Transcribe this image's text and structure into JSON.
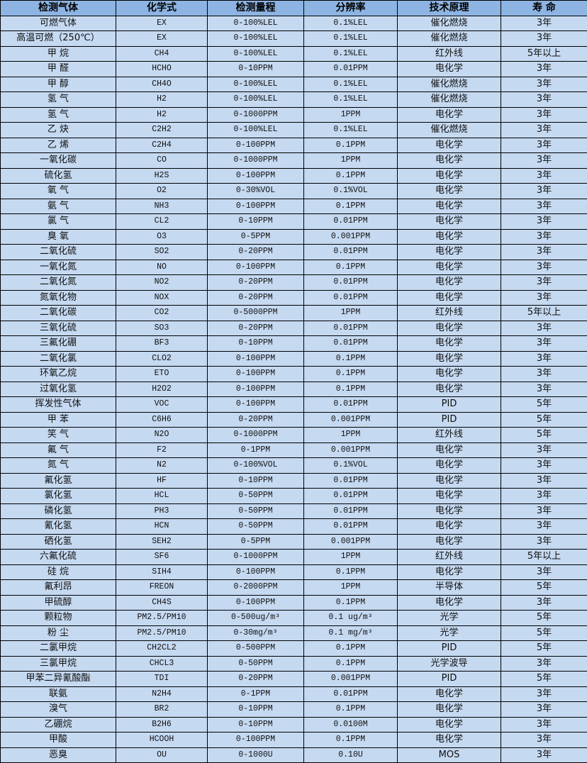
{
  "headers": [
    "检测气体",
    "化学式",
    "检测量程",
    "分辨率",
    "技术原理",
    "寿 命"
  ],
  "rows": [
    [
      "可燃气体",
      "EX",
      "0-100%LEL",
      "0.1%LEL",
      "催化燃烧",
      "3年"
    ],
    [
      "高温可燃（250℃）",
      "EX",
      "0-100%LEL",
      "0.1%LEL",
      "催化燃烧",
      "3年"
    ],
    [
      "甲 烷",
      "CH4",
      "0-100%LEL",
      "0.1%LEL",
      "红外线",
      "5年以上"
    ],
    [
      "甲 醛",
      "HCHO",
      "0-10PPM",
      "0.01PPM",
      "电化学",
      "3年"
    ],
    [
      "甲 醇",
      "CH4O",
      "0-100%LEL",
      "0.1%LEL",
      "催化燃烧",
      "3年"
    ],
    [
      "氢 气",
      "H2",
      "0-100%LEL",
      "0.1%LEL",
      "催化燃烧",
      "3年"
    ],
    [
      "氢 气",
      "H2",
      "0-1000PPM",
      "1PPM",
      "电化学",
      "3年"
    ],
    [
      "乙 炔",
      "C2H2",
      "0-100%LEL",
      "0.1%LEL",
      "催化燃烧",
      "3年"
    ],
    [
      "乙 烯",
      "C2H4",
      "0-100PPM",
      "0.1PPM",
      "电化学",
      "3年"
    ],
    [
      "一氧化碳",
      "CO",
      "0-1000PPM",
      "1PPM",
      "电化学",
      "3年"
    ],
    [
      "硫化氢",
      "H2S",
      "0-100PPM",
      "0.1PPM",
      "电化学",
      "3年"
    ],
    [
      "氧 气",
      "O2",
      "0-30%VOL",
      "0.1%VOL",
      "电化学",
      "3年"
    ],
    [
      "氨 气",
      "NH3",
      "0-100PPM",
      "0.1PPM",
      "电化学",
      "3年"
    ],
    [
      "氯 气",
      "CL2",
      "0-10PPM",
      "0.01PPM",
      "电化学",
      "3年"
    ],
    [
      "臭 氧",
      "O3",
      "0-5PPM",
      "0.001PPM",
      "电化学",
      "3年"
    ],
    [
      "二氧化硫",
      "SO2",
      "0-20PPM",
      "0.01PPM",
      "电化学",
      "3年"
    ],
    [
      "一氧化氮",
      "NO",
      "0-100PPM",
      "0.1PPM",
      "电化学",
      "3年"
    ],
    [
      "二氧化氮",
      "NO2",
      "0-20PPM",
      "0.01PPM",
      "电化学",
      "3年"
    ],
    [
      "氮氧化物",
      "NOX",
      "0-20PPM",
      "0.01PPM",
      "电化学",
      "3年"
    ],
    [
      "二氧化碳",
      "CO2",
      "0-5000PPM",
      "1PPM",
      "红外线",
      "5年以上"
    ],
    [
      "三氧化硫",
      "SO3",
      "0-20PPM",
      "0.01PPM",
      "电化学",
      "3年"
    ],
    [
      "三氟化硼",
      "BF3",
      "0-10PPM",
      "0.01PPM",
      "电化学",
      "3年"
    ],
    [
      "二氧化氯",
      "CLO2",
      "0-100PPM",
      "0.1PPM",
      "电化学",
      "3年"
    ],
    [
      "环氧乙烷",
      "ETO",
      "0-100PPM",
      "0.1PPM",
      "电化学",
      "3年"
    ],
    [
      "过氧化氢",
      "H2O2",
      "0-100PPM",
      "0.1PPM",
      "电化学",
      "3年"
    ],
    [
      "挥发性气体",
      "VOC",
      "0-100PPM",
      "0.01PPM",
      "PID",
      "5年"
    ],
    [
      "甲 苯",
      "C6H6",
      "0-20PPM",
      "0.001PPM",
      "PID",
      "5年"
    ],
    [
      "笑 气",
      "N2O",
      "0-1000PPM",
      "1PPM",
      "红外线",
      "5年"
    ],
    [
      "氟 气",
      "F2",
      "0-1PPM",
      "0.001PPM",
      "电化学",
      "3年"
    ],
    [
      "氮 气",
      "N2",
      "0-100%VOL",
      "0.1%VOL",
      "电化学",
      "3年"
    ],
    [
      "氟化氢",
      "HF",
      "0-10PPM",
      "0.01PPM",
      "电化学",
      "3年"
    ],
    [
      "氯化氢",
      "HCL",
      "0-50PPM",
      "0.01PPM",
      "电化学",
      "3年"
    ],
    [
      "磷化氢",
      "PH3",
      "0-50PPM",
      "0.01PPM",
      "电化学",
      "3年"
    ],
    [
      "氰化氢",
      "HCN",
      "0-50PPM",
      "0.01PPM",
      "电化学",
      "3年"
    ],
    [
      "硒化氢",
      "SEH2",
      "0-5PPM",
      "0.001PPM",
      "电化学",
      "3年"
    ],
    [
      "六氟化硫",
      "SF6",
      "0-1000PPM",
      "1PPM",
      "红外线",
      "5年以上"
    ],
    [
      "硅 烷",
      "SIH4",
      "0-100PPM",
      "0.1PPM",
      "电化学",
      "3年"
    ],
    [
      "氟利昂",
      "FREON",
      "0-2000PPM",
      "1PPM",
      "半导体",
      "5年"
    ],
    [
      "甲硫醇",
      "CH4S",
      "0-100PPM",
      "0.1PPM",
      "电化学",
      "3年"
    ],
    [
      "颗粒物",
      "PM2.5/PM10",
      "0-500ug/m³",
      "0.1 ug/m³",
      "光学",
      "5年"
    ],
    [
      "粉 尘",
      "PM2.5/PM10",
      "0-30mg/m³",
      "0.1 mg/m³",
      "光学",
      "5年"
    ],
    [
      "二氯甲烷",
      "CH2CL2",
      "0-500PPM",
      "0.1PPM",
      "PID",
      "5年"
    ],
    [
      "三氯甲烷",
      "CHCL3",
      "0-50PPM",
      "0.1PPM",
      "光学波导",
      "3年"
    ],
    [
      "甲苯二异氰酸酯",
      "TDI",
      "0-20PPM",
      "0.001PPM",
      "PID",
      "5年"
    ],
    [
      "联氨",
      "N2H4",
      "0-1PPM",
      "0.01PPM",
      "电化学",
      "3年"
    ],
    [
      "溴气",
      "BR2",
      "0-10PPM",
      "0.1PPM",
      "电化学",
      "3年"
    ],
    [
      "乙硼烷",
      "B2H6",
      "0-10PPM",
      "0.0100M",
      "电化学",
      "3年"
    ],
    [
      "甲酸",
      "HCOOH",
      "0-100PPM",
      "0.1PPM",
      "电化学",
      "3年"
    ],
    [
      "恶臭",
      "OU",
      "0-1000U",
      "0.10U",
      "MOS",
      "3年"
    ]
  ],
  "colors": {
    "header_bg": "#8DB4E2",
    "body_bg": "#C5D9F1",
    "border": "#000000"
  }
}
